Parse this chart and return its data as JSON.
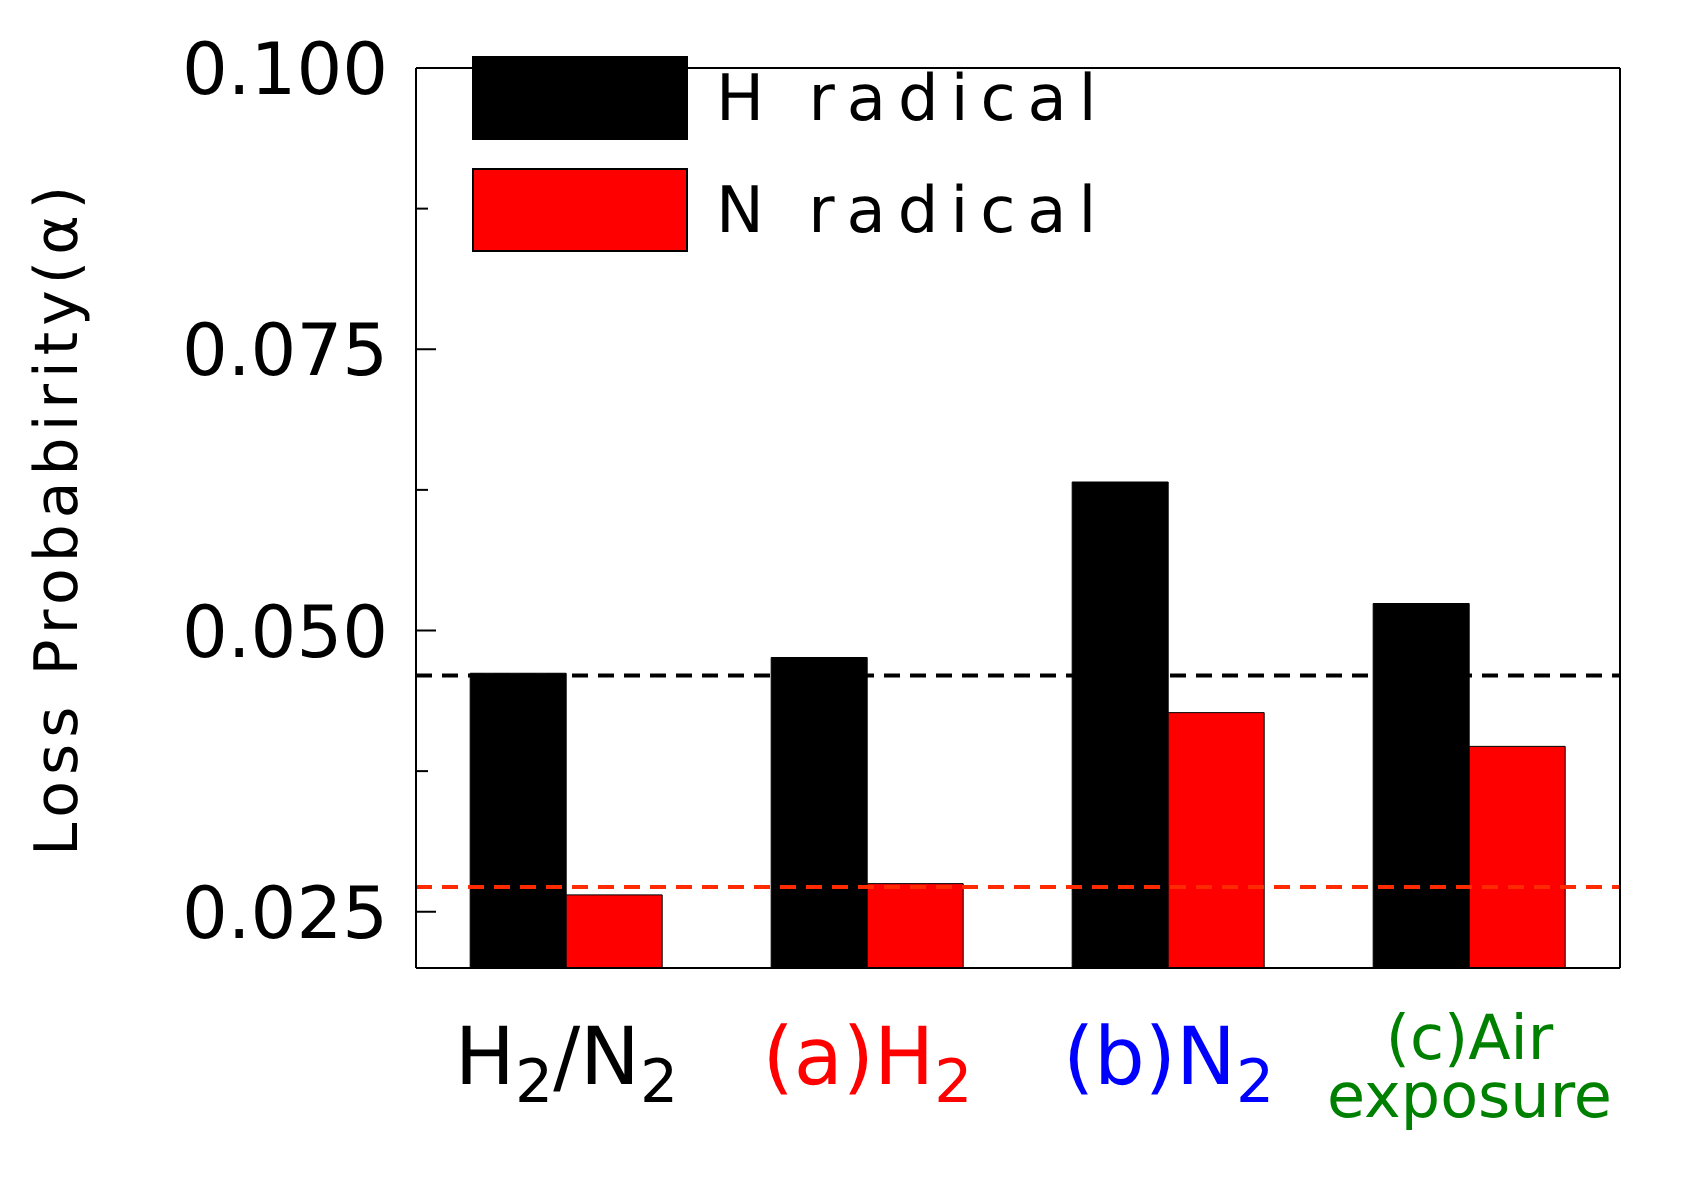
{
  "chart_data": {
    "type": "bar",
    "ylabel": "Loss Probabirity(α)",
    "categories": [
      "H$_{2}$/N$_{2}$",
      "(a)H$_{2}$",
      "(b)N$_{2}$",
      "(c)Air exposure"
    ],
    "series": [
      {
        "name": "H radical",
        "color": "#000000",
        "values": [
          0.0462,
          0.0476,
          0.0632,
          0.0524
        ]
      },
      {
        "name": "N radical",
        "color": "#ff0000",
        "values": [
          0.0265,
          0.0275,
          0.0427,
          0.0397
        ]
      }
    ],
    "ylim": [
      0.02,
      0.1
    ],
    "yticks": [
      {
        "value": 0.025,
        "label": "0.025"
      },
      {
        "value": 0.0375,
        "label": null
      },
      {
        "value": 0.05,
        "label": "0.050"
      },
      {
        "value": 0.0625,
        "label": null
      },
      {
        "value": 0.075,
        "label": "0.075"
      },
      {
        "value": 0.0875,
        "label": null
      },
      {
        "value": 0.1,
        "label": "0.100"
      }
    ],
    "ref_lines": [
      {
        "axis": "y",
        "value": 0.046,
        "color": "#000000",
        "line_style": "dashed"
      },
      {
        "axis": "y",
        "value": 0.0272,
        "color": "#ff2a00",
        "line_style": "dashed"
      }
    ],
    "grid": false,
    "legend": "top left"
  }
}
